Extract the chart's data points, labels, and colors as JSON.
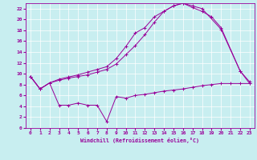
{
  "xlabel": "Windchill (Refroidissement éolien,°C)",
  "bg_color": "#c8eef0",
  "line_color": "#990099",
  "grid_color": "#ffffff",
  "xlim": [
    -0.5,
    23.5
  ],
  "ylim": [
    0,
    23
  ],
  "xticks": [
    0,
    1,
    2,
    3,
    4,
    5,
    6,
    7,
    8,
    9,
    10,
    11,
    12,
    13,
    14,
    15,
    16,
    17,
    18,
    19,
    20,
    21,
    22,
    23
  ],
  "yticks": [
    0,
    2,
    4,
    6,
    8,
    10,
    12,
    14,
    16,
    18,
    20,
    22
  ],
  "c1x": [
    0,
    1,
    2,
    3,
    4,
    5,
    6,
    7,
    8,
    9,
    10,
    11,
    12,
    13,
    14,
    15,
    16,
    17,
    18,
    20,
    22,
    23
  ],
  "c1y": [
    9.5,
    7.2,
    8.3,
    9.0,
    9.4,
    9.8,
    10.3,
    10.8,
    11.3,
    12.8,
    15.0,
    17.5,
    18.5,
    20.5,
    21.5,
    22.5,
    23.0,
    22.5,
    22.0,
    18.2,
    10.5,
    8.2
  ],
  "c2x": [
    0,
    1,
    2,
    3,
    4,
    5,
    6,
    7,
    8,
    9,
    10,
    11,
    12,
    13,
    14,
    15,
    16,
    17,
    18,
    19,
    20,
    22,
    23
  ],
  "c2y": [
    9.5,
    7.2,
    8.3,
    8.8,
    9.2,
    9.5,
    9.8,
    10.3,
    10.8,
    11.8,
    13.5,
    15.2,
    17.2,
    19.5,
    21.5,
    22.5,
    23.0,
    22.2,
    21.5,
    20.5,
    18.5,
    10.5,
    8.5
  ],
  "c3x": [
    0,
    1,
    2,
    3,
    4,
    5,
    6,
    7,
    8,
    9,
    10,
    11,
    12,
    13,
    14,
    15,
    16,
    17,
    18,
    19,
    20,
    21,
    22,
    23
  ],
  "c3y": [
    9.5,
    7.2,
    8.3,
    4.2,
    4.2,
    4.6,
    4.2,
    4.2,
    1.2,
    5.8,
    5.5,
    6.0,
    6.2,
    6.5,
    6.8,
    7.0,
    7.2,
    7.5,
    7.8,
    8.0,
    8.2,
    8.2,
    8.2,
    8.2
  ]
}
